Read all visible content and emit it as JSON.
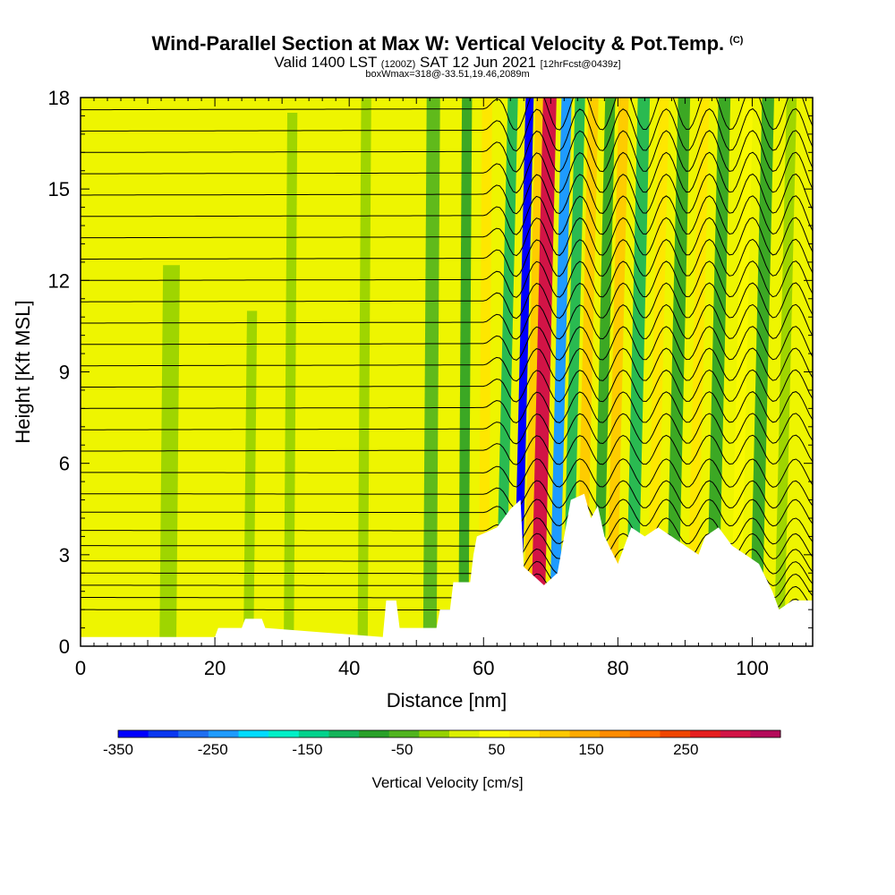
{
  "header": {
    "title": "Wind-Parallel Section at Max W: Vertical Velocity & Pot.Temp.",
    "copyright": "(C)",
    "valid_a": "Valid 1400 LST ",
    "valid_b": "(1200Z)",
    "valid_c": " SAT 12 Jun 2021 ",
    "valid_d": "[12hrFcst@0439z]",
    "box": "boxWmax=318@-33.51,19.46,2089m"
  },
  "chart_data": {
    "type": "heatmap",
    "xlabel": "Distance [nm]",
    "ylabel": "Height [Kft MSL]",
    "xlim": [
      0,
      109
    ],
    "ylim": [
      0,
      18
    ],
    "xticks": [
      0,
      20,
      40,
      60,
      80,
      100
    ],
    "yticks": [
      0,
      3,
      6,
      9,
      12,
      15,
      18
    ],
    "terrain_top_kft": [
      [
        0,
        0.3
      ],
      [
        20,
        0.3
      ],
      [
        20.5,
        0.6
      ],
      [
        24,
        0.6
      ],
      [
        24.5,
        0.9
      ],
      [
        27,
        0.9
      ],
      [
        27.5,
        0.6
      ],
      [
        45,
        0.3
      ],
      [
        45.5,
        1.5
      ],
      [
        47,
        1.5
      ],
      [
        47.5,
        0.6
      ],
      [
        53,
        0.6
      ],
      [
        53.5,
        1.2
      ],
      [
        55,
        1.2
      ],
      [
        55.5,
        2.1
      ],
      [
        58,
        2.1
      ],
      [
        58.5,
        3.0
      ],
      [
        59,
        3.6
      ],
      [
        62,
        3.9
      ],
      [
        64,
        4.5
      ],
      [
        65.5,
        4.8
      ],
      [
        66,
        2.6
      ],
      [
        69,
        2.0
      ],
      [
        71,
        2.4
      ],
      [
        72,
        3.6
      ],
      [
        73,
        4.8
      ],
      [
        75,
        5.0
      ],
      [
        76,
        4.2
      ],
      [
        77,
        4.6
      ],
      [
        78,
        3.6
      ],
      [
        80,
        2.7
      ],
      [
        81,
        3.3
      ],
      [
        82,
        3.9
      ],
      [
        84,
        3.6
      ],
      [
        86,
        3.9
      ],
      [
        88,
        3.6
      ],
      [
        90,
        3.3
      ],
      [
        92,
        3.0
      ],
      [
        93,
        3.6
      ],
      [
        95,
        3.9
      ],
      [
        97,
        3.3
      ],
      [
        99,
        3.0
      ],
      [
        101,
        2.7
      ],
      [
        103,
        1.8
      ],
      [
        104,
        1.2
      ],
      [
        106,
        1.5
      ],
      [
        109,
        1.5
      ]
    ],
    "colorbar": {
      "label": "Vertical Velocity [cm/s]",
      "tick_labels": [
        "-350",
        "-250",
        "-150",
        "-50",
        "50",
        "150",
        "250"
      ],
      "tick_values": [
        -350,
        -250,
        -150,
        -50,
        50,
        150,
        250
      ],
      "range": [
        -350,
        350
      ],
      "colors": [
        "#0000ff",
        "#0a37f0",
        "#1e6ef0",
        "#1e9bff",
        "#00dcff",
        "#00f0c8",
        "#00d28c",
        "#14b45a",
        "#28a028",
        "#50b41e",
        "#96d200",
        "#dcf000",
        "#fafa00",
        "#ffe600",
        "#ffc800",
        "#ffaa00",
        "#ff8c00",
        "#ff6e00",
        "#f04600",
        "#e61e1e",
        "#d21446",
        "#b40a5a"
      ]
    },
    "vertical_velocity_bands": [
      {
        "x": 13,
        "w": 2.5,
        "ymax": 12.5,
        "value": -20
      },
      {
        "x": 25,
        "w": 1.5,
        "ymax": 11,
        "value": -25
      },
      {
        "x": 31,
        "w": 1.5,
        "ymax": 17.5,
        "value": -30
      },
      {
        "x": 42,
        "w": 1.5,
        "ymax": 18,
        "value": -20
      },
      {
        "x": 52,
        "w": 2,
        "ymax": 18,
        "value": -40
      },
      {
        "x": 57,
        "w": 1.5,
        "ymax": 18,
        "value": -70
      },
      {
        "x": 60,
        "w": 1.5,
        "ymax": 18,
        "value": 70
      },
      {
        "x": 62.5,
        "w": 1.5,
        "ymax": 18,
        "value": -100
      },
      {
        "x": 65,
        "w": 1.2,
        "ymax": 18,
        "value": -320
      },
      {
        "x": 66.5,
        "w": 1.2,
        "ymax": 18,
        "value": 110
      },
      {
        "x": 68,
        "w": 2,
        "ymax": 18,
        "value": 290
      },
      {
        "x": 70.5,
        "w": 1.5,
        "ymax": 18,
        "value": -230
      },
      {
        "x": 72.5,
        "w": 1.5,
        "ymax": 18,
        "value": -110
      },
      {
        "x": 74.5,
        "w": 1.5,
        "ymax": 18,
        "value": 120
      },
      {
        "x": 77,
        "w": 1.5,
        "ymax": 18,
        "value": -90
      },
      {
        "x": 79,
        "w": 1.5,
        "ymax": 18,
        "value": 100
      },
      {
        "x": 82,
        "w": 1.8,
        "ymax": 18,
        "value": -110
      },
      {
        "x": 85,
        "w": 1.5,
        "ymax": 18,
        "value": 90
      },
      {
        "x": 88,
        "w": 1.8,
        "ymax": 18,
        "value": -90
      },
      {
        "x": 91,
        "w": 1.5,
        "ymax": 18,
        "value": 80
      },
      {
        "x": 94,
        "w": 1.8,
        "ymax": 18,
        "value": -80
      },
      {
        "x": 97.5,
        "w": 1.5,
        "ymax": 18,
        "value": 60
      },
      {
        "x": 100.5,
        "w": 1.8,
        "ymax": 18,
        "value": -70
      },
      {
        "x": 104,
        "w": 1.5,
        "ymax": 18,
        "value": -30
      }
    ],
    "theta_levels_kft": [
      1.2,
      1.6,
      2.0,
      2.4,
      2.8,
      3.3,
      3.8,
      4.4,
      5.0,
      5.7,
      6.4,
      7.1,
      7.8,
      8.5,
      9.2,
      9.9,
      10.6,
      11.3,
      12.0,
      12.7,
      13.4,
      14.1,
      14.8,
      15.5,
      16.2,
      16.9,
      17.6
    ]
  }
}
